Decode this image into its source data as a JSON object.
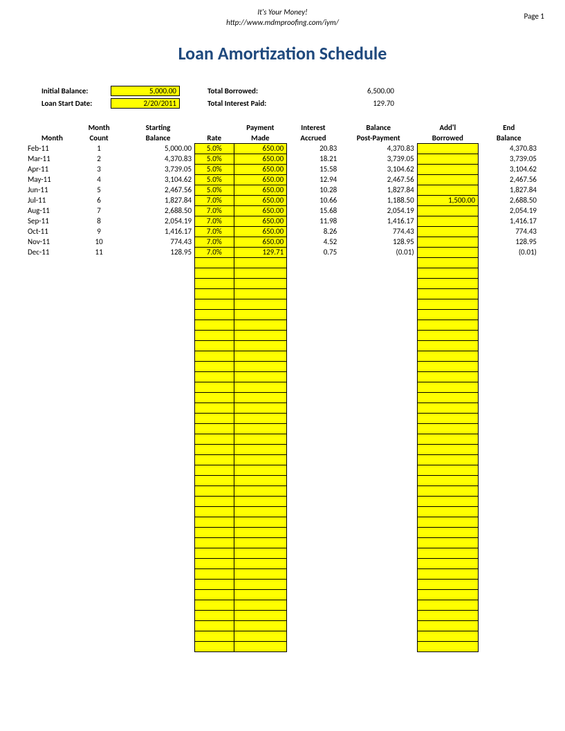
{
  "header": {
    "tagline": "It's Your Money!",
    "url": "http://www.mdmproofing.com/iym/",
    "page_label": "Page 1"
  },
  "title": "Loan Amortization Schedule",
  "summary": {
    "initial_balance_label": "Initial Balance:",
    "initial_balance_value": "5,000.00",
    "loan_start_label": "Loan Start Date:",
    "loan_start_value": "2/20/2011",
    "total_borrowed_label": "Total Borrowed:",
    "total_borrowed_value": "6,500.00",
    "total_interest_label": "Total Interest Paid:",
    "total_interest_value": "129.70"
  },
  "columns": {
    "month_l1": "",
    "month_l2": "Month",
    "count_l1": "Month",
    "count_l2": "Count",
    "start_l1": "Starting",
    "start_l2": "Balance",
    "rate_l1": "",
    "rate_l2": "Rate",
    "pay_l1": "Payment",
    "pay_l2": "Made",
    "int_l1": "Interest",
    "int_l2": "Accrued",
    "balpp_l1": "Balance",
    "balpp_l2": "Post-Payment",
    "addl_l1": "Add'l",
    "addl_l2": "Borrowed",
    "end_l1": "End",
    "end_l2": "Balance"
  },
  "rows": [
    {
      "month": "Feb-11",
      "count": "1",
      "start": "5,000.00",
      "rate": "5.0%",
      "pay": "650.00",
      "int": "20.83",
      "balpp": "4,370.83",
      "addl": "",
      "end": "4,370.83"
    },
    {
      "month": "Mar-11",
      "count": "2",
      "start": "4,370.83",
      "rate": "5.0%",
      "pay": "650.00",
      "int": "18.21",
      "balpp": "3,739.05",
      "addl": "",
      "end": "3,739.05"
    },
    {
      "month": "Apr-11",
      "count": "3",
      "start": "3,739.05",
      "rate": "5.0%",
      "pay": "650.00",
      "int": "15.58",
      "balpp": "3,104.62",
      "addl": "",
      "end": "3,104.62"
    },
    {
      "month": "May-11",
      "count": "4",
      "start": "3,104.62",
      "rate": "5.0%",
      "pay": "650.00",
      "int": "12.94",
      "balpp": "2,467.56",
      "addl": "",
      "end": "2,467.56"
    },
    {
      "month": "Jun-11",
      "count": "5",
      "start": "2,467.56",
      "rate": "5.0%",
      "pay": "650.00",
      "int": "10.28",
      "balpp": "1,827.84",
      "addl": "",
      "end": "1,827.84"
    },
    {
      "month": "Jul-11",
      "count": "6",
      "start": "1,827.84",
      "rate": "7.0%",
      "pay": "650.00",
      "int": "10.66",
      "balpp": "1,188.50",
      "addl": "1,500.00",
      "end": "2,688.50"
    },
    {
      "month": "Aug-11",
      "count": "7",
      "start": "2,688.50",
      "rate": "7.0%",
      "pay": "650.00",
      "int": "15.68",
      "balpp": "2,054.19",
      "addl": "",
      "end": "2,054.19"
    },
    {
      "month": "Sep-11",
      "count": "8",
      "start": "2,054.19",
      "rate": "7.0%",
      "pay": "650.00",
      "int": "11.98",
      "balpp": "1,416.17",
      "addl": "",
      "end": "1,416.17"
    },
    {
      "month": "Oct-11",
      "count": "9",
      "start": "1,416.17",
      "rate": "7.0%",
      "pay": "650.00",
      "int": "8.26",
      "balpp": "774.43",
      "addl": "",
      "end": "774.43"
    },
    {
      "month": "Nov-11",
      "count": "10",
      "start": "774.43",
      "rate": "7.0%",
      "pay": "650.00",
      "int": "4.52",
      "balpp": "128.95",
      "addl": "",
      "end": "128.95"
    },
    {
      "month": "Dec-11",
      "count": "11",
      "start": "128.95",
      "rate": "7.0%",
      "pay": "129.71",
      "int": "0.75",
      "balpp": "(0.01)",
      "addl": "",
      "end": "(0.01)"
    }
  ],
  "empty_yellow_rows": 38,
  "colors": {
    "title": "#1f497d",
    "highlight": "#ffff00",
    "border": "#000000",
    "background": "#ffffff",
    "text": "#000000"
  },
  "fonts": {
    "body_size_pt": 11,
    "title_size_pt": 26,
    "family": "Calibri"
  }
}
